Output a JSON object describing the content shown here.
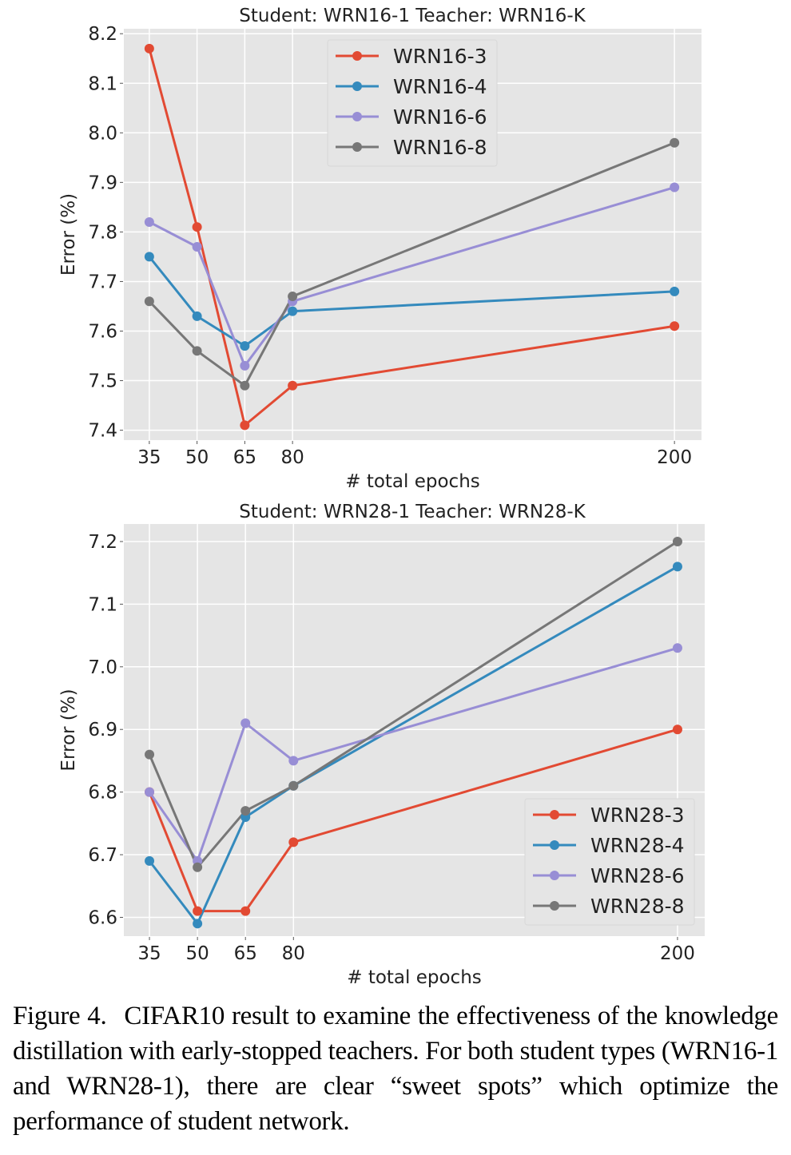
{
  "chart_data": [
    {
      "type": "line",
      "title": "Student: WRN16-1  Teacher: WRN16-K",
      "xlabel": "# total epochs",
      "ylabel": "Error (%)",
      "x": [
        35,
        50,
        65,
        80,
        200
      ],
      "xticks": [
        "35",
        "50",
        "65",
        "80",
        "200"
      ],
      "yticks": [
        "7.4",
        "7.5",
        "7.6",
        "7.7",
        "7.8",
        "7.9",
        "8.0",
        "8.1",
        "8.2"
      ],
      "ylim": [
        7.38,
        8.21
      ],
      "xlim": [
        27,
        208.5
      ],
      "grid": true,
      "legend_position": "top-center",
      "series": [
        {
          "name": "WRN16-3",
          "color": "#E24A33",
          "values": [
            8.17,
            7.81,
            7.41,
            7.49,
            7.61
          ]
        },
        {
          "name": "WRN16-4",
          "color": "#348ABD",
          "values": [
            7.75,
            7.63,
            7.57,
            7.64,
            7.68
          ]
        },
        {
          "name": "WRN16-6",
          "color": "#988ED5",
          "values": [
            7.82,
            7.77,
            7.53,
            7.66,
            7.89
          ]
        },
        {
          "name": "WRN16-8",
          "color": "#777777",
          "values": [
            7.66,
            7.56,
            7.49,
            7.67,
            7.98
          ]
        }
      ]
    },
    {
      "type": "line",
      "title": "Student: WRN28-1  Teacher: WRN28-K",
      "xlabel": "# total epochs",
      "ylabel": "Error (%)",
      "x": [
        35,
        50,
        65,
        80,
        200
      ],
      "xticks": [
        "35",
        "50",
        "65",
        "80",
        "200"
      ],
      "yticks": [
        "6.6",
        "6.7",
        "6.8",
        "6.9",
        "7.0",
        "7.1",
        "7.2"
      ],
      "ylim": [
        6.57,
        7.228
      ],
      "xlim": [
        27,
        208.5
      ],
      "grid": true,
      "legend_position": "bottom-right",
      "series": [
        {
          "name": "WRN28-3",
          "color": "#E24A33",
          "values": [
            6.8,
            6.61,
            6.61,
            6.72,
            6.9
          ]
        },
        {
          "name": "WRN28-4",
          "color": "#348ABD",
          "values": [
            6.69,
            6.59,
            6.76,
            6.81,
            7.16
          ]
        },
        {
          "name": "WRN28-6",
          "color": "#988ED5",
          "values": [
            6.8,
            6.69,
            6.91,
            6.85,
            7.03
          ]
        },
        {
          "name": "WRN28-8",
          "color": "#777777",
          "values": [
            6.86,
            6.68,
            6.77,
            6.81,
            7.2
          ]
        }
      ]
    }
  ],
  "caption": {
    "label": "Figure 4.",
    "text": "CIFAR10 result to examine the effectiveness of the knowledge distillation with early-stopped teachers. For both student types (WRN16-1 and WRN28-1), there are clear “sweet spots” which optimize the performance of student network."
  }
}
